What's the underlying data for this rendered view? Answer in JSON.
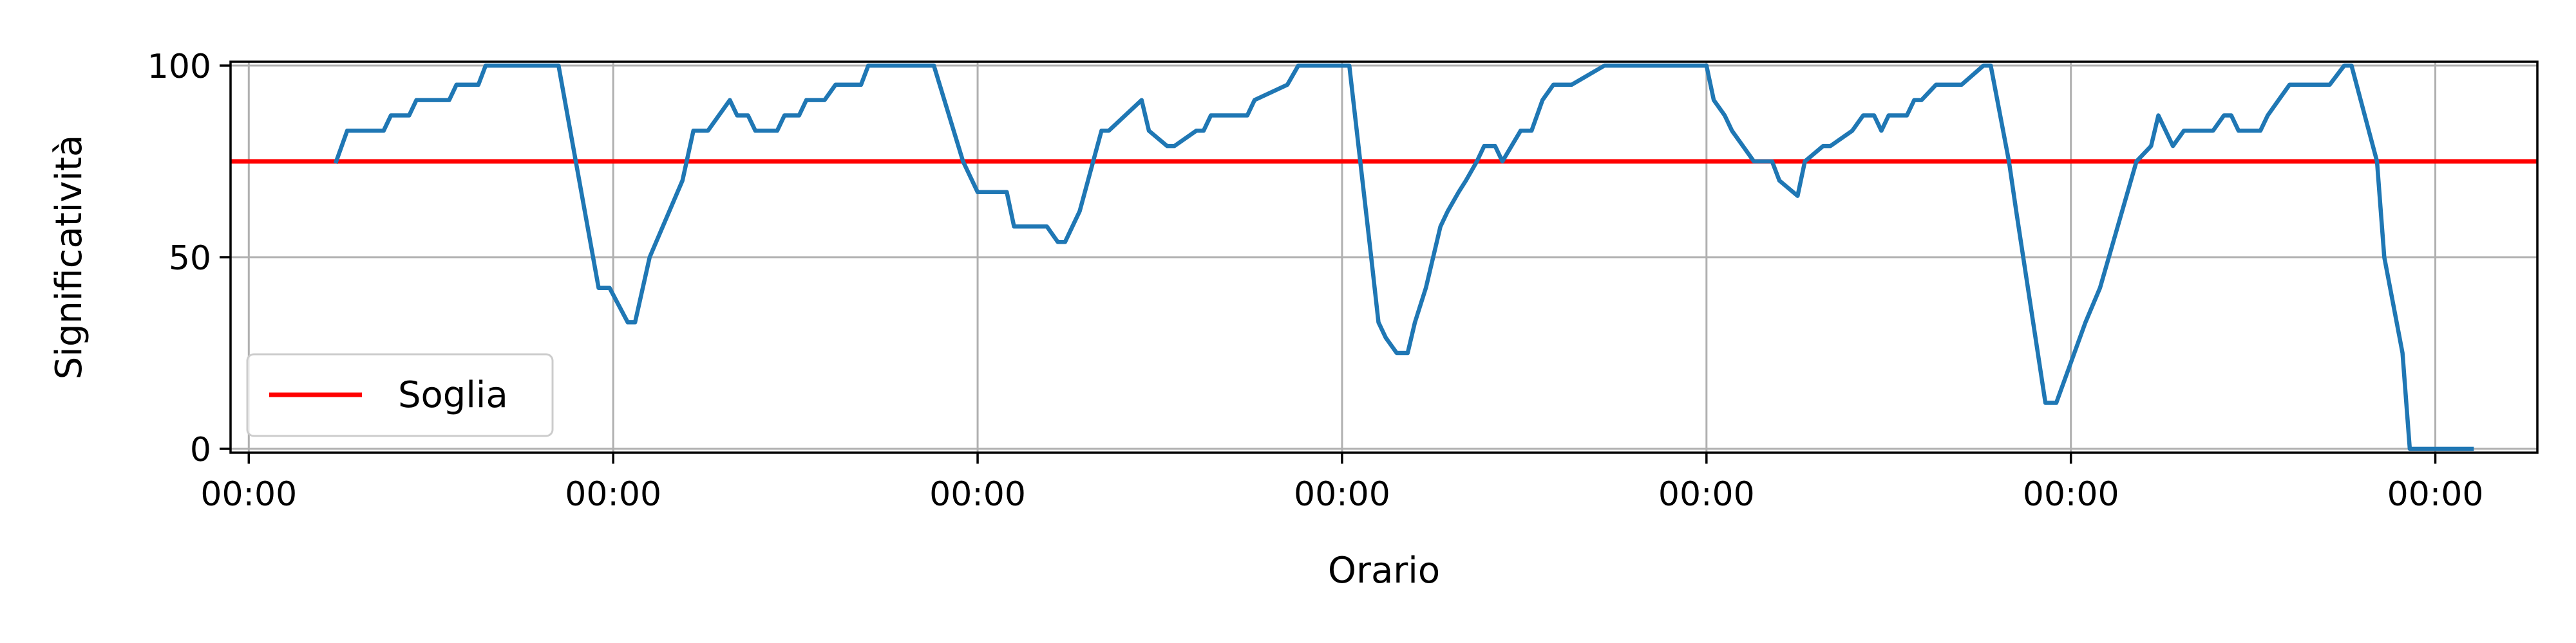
{
  "chart_data": {
    "type": "line",
    "title": "",
    "xlabel": "Orario",
    "ylabel": "Significatività",
    "xlim": [
      -0.05,
      6.28
    ],
    "ylim": [
      -1,
      101
    ],
    "x_ticks": [
      0,
      1,
      2,
      3,
      4,
      5,
      6
    ],
    "x_tick_labels": [
      "00:00",
      "00:00",
      "00:00",
      "00:00",
      "00:00",
      "00:00",
      "00:00"
    ],
    "y_ticks": [
      0,
      50,
      100
    ],
    "y_tick_labels": [
      "0",
      "50",
      "100"
    ],
    "grid": true,
    "legend": {
      "position": "lower-left",
      "entries": [
        "Soglia"
      ]
    },
    "threshold": {
      "name": "Soglia",
      "value": 75,
      "color": "#ff0000"
    },
    "series": [
      {
        "color": "#1f77b4",
        "x": [
          0.24,
          0.27,
          0.37,
          0.39,
          0.44,
          0.46,
          0.55,
          0.57,
          0.63,
          0.65,
          0.85,
          0.96,
          0.99,
          1.04,
          1.06,
          1.1,
          1.19,
          1.22,
          1.26,
          1.32,
          1.34,
          1.37,
          1.39,
          1.45,
          1.47,
          1.51,
          1.53,
          1.58,
          1.61,
          1.68,
          1.7,
          1.88,
          1.96,
          2.0,
          2.08,
          2.1,
          2.14,
          2.19,
          2.22,
          2.24,
          2.26,
          2.28,
          2.34,
          2.36,
          2.45,
          2.47,
          2.52,
          2.54,
          2.6,
          2.62,
          2.64,
          2.67,
          2.69,
          2.74,
          2.76,
          2.85,
          2.88,
          3.02,
          3.05,
          3.08,
          3.1,
          3.12,
          3.15,
          3.18,
          3.2,
          3.23,
          3.27,
          3.29,
          3.32,
          3.34,
          3.37,
          3.39,
          3.42,
          3.44,
          3.49,
          3.52,
          3.55,
          3.58,
          3.61,
          3.63,
          3.72,
          3.75,
          4.0,
          4.02,
          4.05,
          4.07,
          4.1,
          4.13,
          4.18,
          4.2,
          4.25,
          4.27,
          4.32,
          4.34,
          4.4,
          4.43,
          4.46,
          4.48,
          4.5,
          4.55,
          4.57,
          4.59,
          4.63,
          4.68,
          4.7,
          4.76,
          4.78,
          4.83,
          4.85,
          4.93,
          4.96,
          5.04,
          5.08,
          5.18,
          5.22,
          5.24,
          5.28,
          5.31,
          5.39,
          5.42,
          5.44,
          5.46,
          5.48,
          5.52,
          5.54,
          5.57,
          5.6,
          5.69,
          5.71,
          5.75,
          5.77,
          5.84,
          5.86,
          5.91,
          5.93,
          6.02,
          6.08,
          6.1
        ],
        "y": [
          75,
          83,
          83,
          87,
          87,
          91,
          91,
          95,
          95,
          100,
          100,
          42,
          42,
          33,
          33,
          50,
          70,
          83,
          83,
          91,
          87,
          87,
          83,
          83,
          87,
          87,
          91,
          91,
          95,
          95,
          100,
          100,
          75,
          67,
          67,
          58,
          58,
          58,
          54,
          54,
          58,
          62,
          83,
          83,
          91,
          83,
          79,
          79,
          83,
          83,
          87,
          87,
          87,
          87,
          91,
          95,
          100,
          100,
          75,
          50,
          33,
          29,
          25,
          25,
          33,
          42,
          58,
          62,
          67,
          70,
          75,
          79,
          79,
          75,
          83,
          83,
          91,
          95,
          95,
          95,
          100,
          100,
          100,
          91,
          87,
          83,
          79,
          75,
          75,
          70,
          66,
          75,
          79,
          79,
          83,
          87,
          87,
          83,
          87,
          87,
          91,
          91,
          95,
          95,
          95,
          100,
          100,
          75,
          62,
          12,
          12,
          33,
          42,
          75,
          79,
          87,
          79,
          83,
          83,
          87,
          87,
          83,
          83,
          83,
          87,
          91,
          95,
          95,
          95,
          100,
          100,
          75,
          50,
          25,
          0,
          0,
          0,
          0
        ]
      }
    ]
  }
}
